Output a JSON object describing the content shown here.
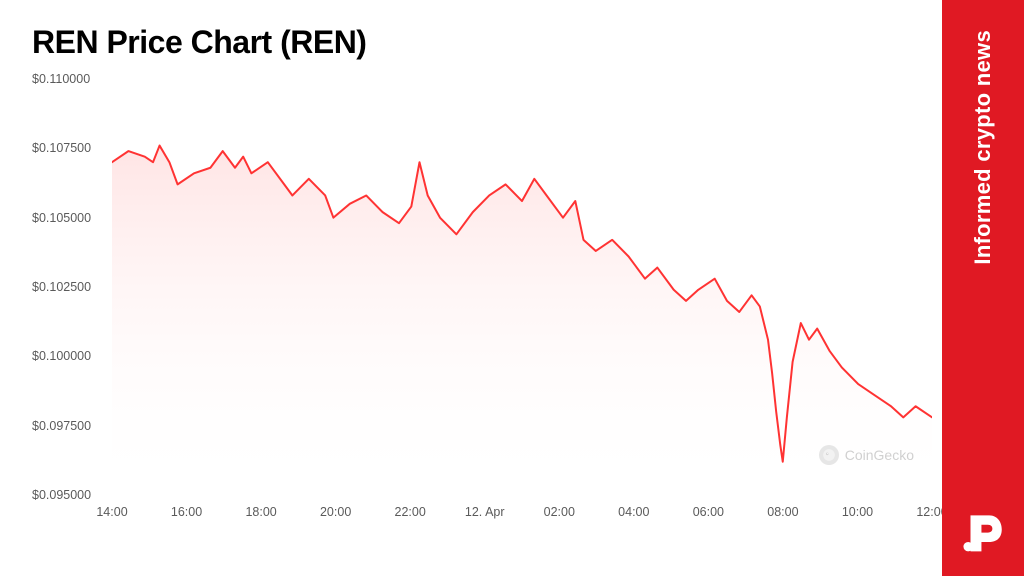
{
  "chart": {
    "type": "line_area",
    "title": "REN Price Chart (REN)",
    "title_fontsize": 32,
    "title_color": "#000000",
    "background_color": "#ffffff",
    "line_color": "#ff3333",
    "line_width": 2,
    "area_fill_top": "#ffd6d6",
    "area_fill_bottom": "#ffffff",
    "area_opacity": 0.65,
    "ylim": [
      0.095,
      0.11
    ],
    "y_ticks": [
      0.11,
      0.1075,
      0.105,
      0.1025,
      0.1,
      0.0975,
      0.095
    ],
    "y_tick_labels": [
      "$0.110000",
      "$0.107500",
      "$0.105000",
      "$0.102500",
      "$0.100000",
      "$0.097500",
      "$0.095000"
    ],
    "x_ticks": [
      "14:00",
      "16:00",
      "18:00",
      "20:00",
      "22:00",
      "12. Apr",
      "02:00",
      "04:00",
      "06:00",
      "08:00",
      "10:00",
      "12:00"
    ],
    "label_fontsize": 12.5,
    "label_color": "#5a5a5a",
    "grid": false,
    "series": [
      {
        "x": 0,
        "y": 0.107
      },
      {
        "x": 0.02,
        "y": 0.1074
      },
      {
        "x": 0.04,
        "y": 0.1072
      },
      {
        "x": 0.05,
        "y": 0.107
      },
      {
        "x": 0.058,
        "y": 0.1076
      },
      {
        "x": 0.07,
        "y": 0.107
      },
      {
        "x": 0.08,
        "y": 0.1062
      },
      {
        "x": 0.1,
        "y": 0.1066
      },
      {
        "x": 0.12,
        "y": 0.1068
      },
      {
        "x": 0.135,
        "y": 0.1074
      },
      {
        "x": 0.15,
        "y": 0.1068
      },
      {
        "x": 0.16,
        "y": 0.1072
      },
      {
        "x": 0.17,
        "y": 0.1066
      },
      {
        "x": 0.19,
        "y": 0.107
      },
      {
        "x": 0.21,
        "y": 0.1062
      },
      {
        "x": 0.22,
        "y": 0.1058
      },
      {
        "x": 0.24,
        "y": 0.1064
      },
      {
        "x": 0.26,
        "y": 0.1058
      },
      {
        "x": 0.27,
        "y": 0.105
      },
      {
        "x": 0.29,
        "y": 0.1055
      },
      {
        "x": 0.31,
        "y": 0.1058
      },
      {
        "x": 0.33,
        "y": 0.1052
      },
      {
        "x": 0.35,
        "y": 0.1048
      },
      {
        "x": 0.365,
        "y": 0.1054
      },
      {
        "x": 0.375,
        "y": 0.107
      },
      {
        "x": 0.385,
        "y": 0.1058
      },
      {
        "x": 0.4,
        "y": 0.105
      },
      {
        "x": 0.42,
        "y": 0.1044
      },
      {
        "x": 0.44,
        "y": 0.1052
      },
      {
        "x": 0.46,
        "y": 0.1058
      },
      {
        "x": 0.48,
        "y": 0.1062
      },
      {
        "x": 0.5,
        "y": 0.1056
      },
      {
        "x": 0.515,
        "y": 0.1064
      },
      {
        "x": 0.53,
        "y": 0.1058
      },
      {
        "x": 0.55,
        "y": 0.105
      },
      {
        "x": 0.565,
        "y": 0.1056
      },
      {
        "x": 0.575,
        "y": 0.1042
      },
      {
        "x": 0.59,
        "y": 0.1038
      },
      {
        "x": 0.61,
        "y": 0.1042
      },
      {
        "x": 0.63,
        "y": 0.1036
      },
      {
        "x": 0.65,
        "y": 0.1028
      },
      {
        "x": 0.665,
        "y": 0.1032
      },
      {
        "x": 0.685,
        "y": 0.1024
      },
      {
        "x": 0.7,
        "y": 0.102
      },
      {
        "x": 0.715,
        "y": 0.1024
      },
      {
        "x": 0.735,
        "y": 0.1028
      },
      {
        "x": 0.75,
        "y": 0.102
      },
      {
        "x": 0.765,
        "y": 0.1016
      },
      {
        "x": 0.78,
        "y": 0.1022
      },
      {
        "x": 0.79,
        "y": 0.1018
      },
      {
        "x": 0.8,
        "y": 0.1006
      },
      {
        "x": 0.805,
        "y": 0.0994
      },
      {
        "x": 0.81,
        "y": 0.098
      },
      {
        "x": 0.815,
        "y": 0.0968
      },
      {
        "x": 0.818,
        "y": 0.0962
      },
      {
        "x": 0.823,
        "y": 0.0978
      },
      {
        "x": 0.83,
        "y": 0.0998
      },
      {
        "x": 0.84,
        "y": 0.1012
      },
      {
        "x": 0.85,
        "y": 0.1006
      },
      {
        "x": 0.86,
        "y": 0.101
      },
      {
        "x": 0.875,
        "y": 0.1002
      },
      {
        "x": 0.89,
        "y": 0.0996
      },
      {
        "x": 0.91,
        "y": 0.099
      },
      {
        "x": 0.93,
        "y": 0.0986
      },
      {
        "x": 0.95,
        "y": 0.0982
      },
      {
        "x": 0.965,
        "y": 0.0978
      },
      {
        "x": 0.98,
        "y": 0.0982
      },
      {
        "x": 1.0,
        "y": 0.0978
      }
    ],
    "watermark": {
      "text": "CoinGecko",
      "color": "#7a7a7a",
      "icon_bg": "#b8b8b8"
    }
  },
  "sidebar": {
    "background_color": "#e01923",
    "text": "Informed crypto news",
    "text_color": "#ffffff",
    "text_fontsize": 22,
    "logo_letter": "P",
    "logo_color": "#ffffff"
  }
}
